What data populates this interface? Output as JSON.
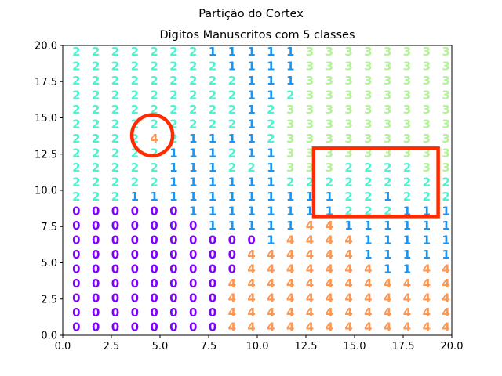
{
  "chart_data": {
    "type": "scatter",
    "suptitle": "Partição do Cortex",
    "title": "Digitos Manuscritos com 5 classes",
    "xlabel": "",
    "ylabel": "",
    "xlim": [
      0,
      20
    ],
    "ylim": [
      0,
      20
    ],
    "grid": false,
    "xticks": [
      "0.0",
      "2.5",
      "5.0",
      "7.5",
      "10.0",
      "12.5",
      "15.0",
      "17.5",
      "20.0"
    ],
    "yticks": [
      "0.0",
      "2.5",
      "5.0",
      "7.5",
      "10.0",
      "12.5",
      "15.0",
      "17.5",
      "20.0"
    ],
    "class_colors": {
      "0": "#7f00ff",
      "1": "#1996f3",
      "2": "#4df3ce",
      "3": "#b2f396",
      "4": "#ff964f"
    },
    "grid_x": [
      0.7,
      1.7,
      2.7,
      3.7,
      4.7,
      5.7,
      6.7,
      7.7,
      8.7,
      9.7,
      10.7,
      11.7,
      12.7,
      13.7,
      14.7,
      15.7,
      16.7,
      17.7,
      18.7,
      19.7
    ],
    "grid_y": [
      19.6,
      18.6,
      17.6,
      16.6,
      15.6,
      14.6,
      13.6,
      12.6,
      11.6,
      10.6,
      9.6,
      8.6,
      7.6,
      6.6,
      5.6,
      4.6,
      3.6,
      2.6,
      1.6,
      0.6
    ],
    "grid_rows": [
      "22222221111133333333",
      "22222222111133333333",
      "22222222211133333333",
      "22222222211233333333",
      "22222222212333333333",
      "22222222212333333333",
      "22224211112333333333",
      "22222111211333333333",
      "22222111221333222233",
      "22222111111222222222",
      "22211111111111221222",
      "00000011111111222111",
      "00000001111144111111",
      "00000000001444411111",
      "00000000044444411111",
      "00000000044444441144",
      "00000000444444444444",
      "00000000444444444444",
      "00000000444444444444",
      "00000000444444444444"
    ],
    "annotations": [
      {
        "shape": "circle",
        "cx": 4.6,
        "cy": 13.8,
        "r": 1.05,
        "color": "#ff2a00"
      },
      {
        "shape": "rectangle",
        "x0": 12.9,
        "y0": 8.2,
        "x1": 19.3,
        "y1": 12.9,
        "color": "#ff2a00"
      }
    ]
  }
}
